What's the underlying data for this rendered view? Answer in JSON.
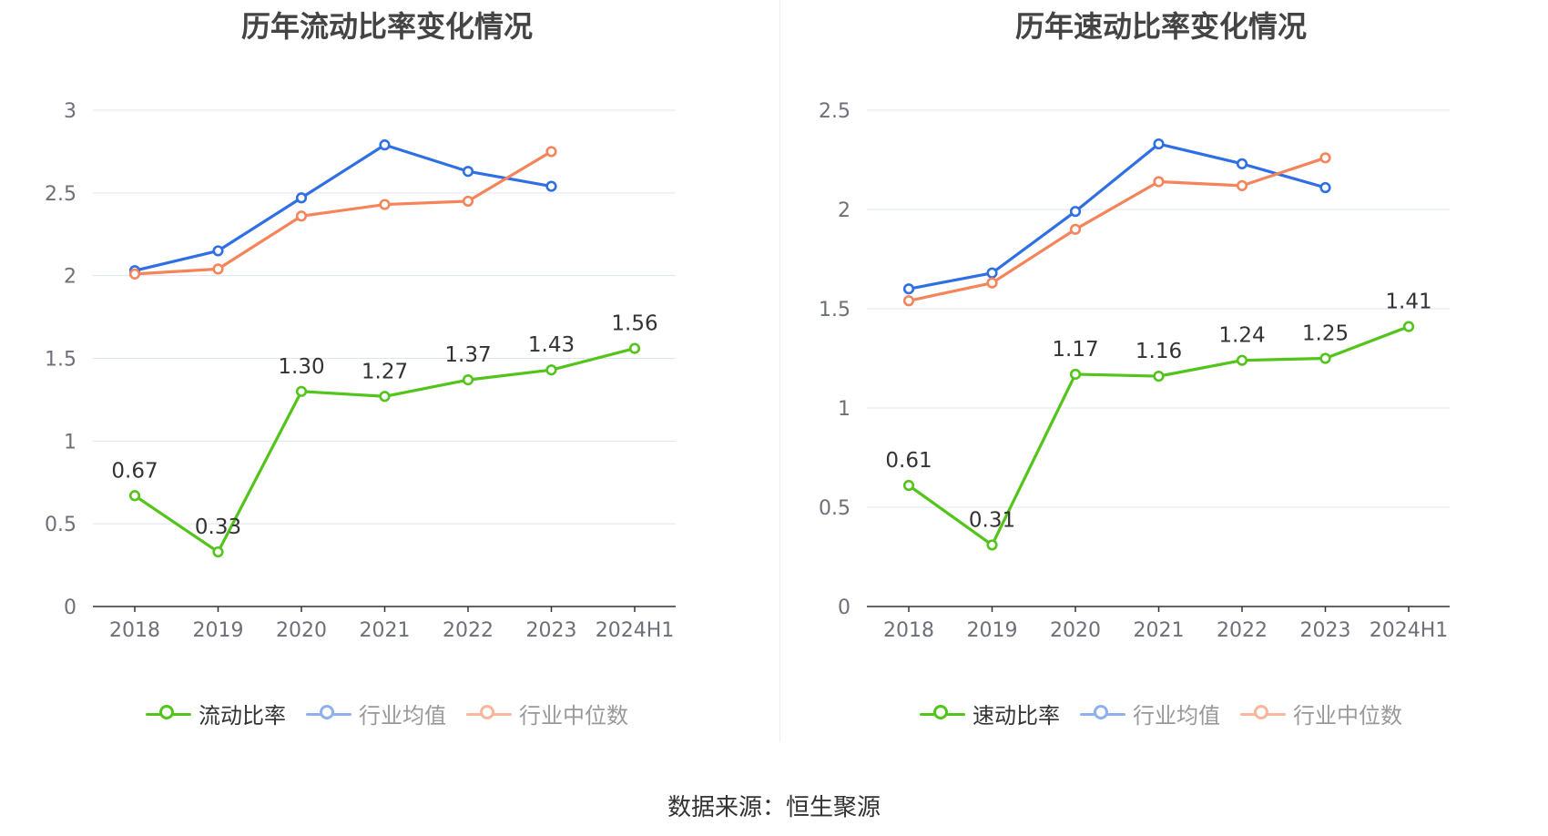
{
  "footer": {
    "source": "数据来源：恒生聚源"
  },
  "colors": {
    "company": "#52c41a",
    "avg": "#2f6fe4",
    "median": "#f5845b",
    "grid": "#dfe4f3",
    "axis": "#333333",
    "tick": "#6e7079"
  },
  "legend_icons": {
    "company": "line-circle-icon",
    "avg": "line-circle-icon",
    "median": "line-circle-icon"
  },
  "chart_data": [
    {
      "type": "line",
      "title": "历年流动比率变化情况",
      "categories": [
        "2018",
        "2019",
        "2020",
        "2021",
        "2022",
        "2023",
        "2024H1"
      ],
      "ylim": [
        0,
        3
      ],
      "y_ticks": [
        "0",
        "0.5",
        "1",
        "1.5",
        "2",
        "2.5",
        "3"
      ],
      "grid": true,
      "legend_position": "bottom",
      "series": [
        {
          "name": "流动比率",
          "values": [
            0.67,
            0.33,
            1.3,
            1.27,
            1.37,
            1.43,
            1.56
          ],
          "labels": [
            "0.67",
            "0.33",
            "1.30",
            "1.27",
            "1.37",
            "1.43",
            "1.56"
          ]
        },
        {
          "name": "行业均值",
          "values": [
            2.03,
            2.15,
            2.47,
            2.79,
            2.63,
            2.54,
            null
          ]
        },
        {
          "name": "行业中位数",
          "values": [
            2.01,
            2.04,
            2.36,
            2.43,
            2.45,
            2.75,
            null
          ]
        }
      ]
    },
    {
      "type": "line",
      "title": "历年速动比率变化情况",
      "categories": [
        "2018",
        "2019",
        "2020",
        "2021",
        "2022",
        "2023",
        "2024H1"
      ],
      "ylim": [
        0,
        2.5
      ],
      "y_ticks": [
        "0",
        "0.5",
        "1",
        "1.5",
        "2",
        "2.5"
      ],
      "grid": true,
      "legend_position": "bottom",
      "series": [
        {
          "name": "速动比率",
          "values": [
            0.61,
            0.31,
            1.17,
            1.16,
            1.24,
            1.25,
            1.41
          ],
          "labels": [
            "0.61",
            "0.31",
            "1.17",
            "1.16",
            "1.24",
            "1.25",
            "1.41"
          ]
        },
        {
          "name": "行业均值",
          "values": [
            1.6,
            1.68,
            1.99,
            2.33,
            2.23,
            2.11,
            null
          ]
        },
        {
          "name": "行业中位数",
          "values": [
            1.54,
            1.63,
            1.9,
            2.14,
            2.12,
            2.26,
            null
          ]
        }
      ]
    }
  ]
}
